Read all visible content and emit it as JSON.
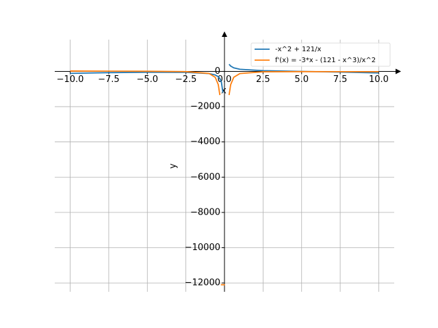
{
  "chart_data": {
    "type": "line",
    "x_label": "x",
    "y_label": "y",
    "x": [
      -10,
      -7.5,
      -5,
      -2.5,
      -1,
      -0.6,
      -0.4,
      -0.3,
      -0.2,
      -0.1,
      0.2,
      0.3,
      0.4,
      0.6,
      1,
      2.5,
      5,
      7.5,
      10
    ],
    "series": [
      {
        "name": "-x^2 + 121/x",
        "color": "#1f77b4",
        "values": [
          -112.1,
          -72.4,
          -49.2,
          -54.65,
          -122,
          -202.0,
          -302.7,
          -403.4,
          -605.0,
          -1210,
          null,
          403.2,
          302.3,
          201.3,
          120,
          42.15,
          -0.8,
          -40.1,
          -87.9
        ]
      },
      {
        "name": "f'(x) = -3*x - (121 - x^3)/x^2",
        "color": "#ff7f0e",
        "values": [
          18.8,
          12.85,
          5.16,
          -14.36,
          -119,
          -334.9,
          -755.5,
          -1343.8,
          null,
          -12099.8,
          null,
          -1345.0,
          -757.1,
          -337.3,
          -123,
          -24.4,
          -14.84,
          -17.15,
          -21.21
        ]
      }
    ],
    "xlim": [
      -11,
      11
    ],
    "ylim": [
      -12500,
      1800
    ],
    "xticks": [
      {
        "value": -10,
        "label": "−10.0"
      },
      {
        "value": -7.5,
        "label": "−7.5"
      },
      {
        "value": -5,
        "label": "−5.0"
      },
      {
        "value": -2.5,
        "label": "−2.5"
      },
      {
        "value": 0,
        "label": "0.0"
      },
      2.5,
      {
        "value": 5,
        "label": "5.0"
      },
      7.5,
      {
        "value": 10,
        "label": "10.0"
      }
    ],
    "yticks": [
      0,
      {
        "value": -2000,
        "label": "−2000"
      },
      {
        "value": -4000,
        "label": "−4000"
      },
      {
        "value": -6000,
        "label": "−6000"
      },
      {
        "value": -8000,
        "label": "−8000"
      },
      {
        "value": -10000,
        "label": "−10000"
      },
      {
        "value": -12000,
        "label": "−12000"
      }
    ],
    "grid": true,
    "legend": "upper right"
  }
}
